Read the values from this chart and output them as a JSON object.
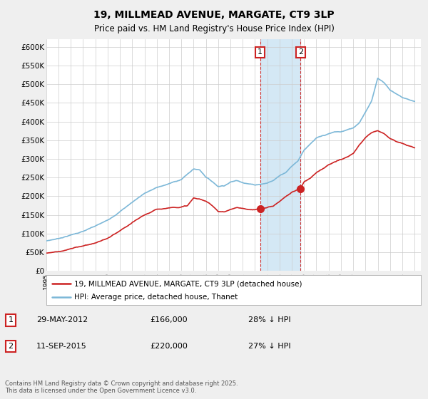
{
  "title": "19, MILLMEAD AVENUE, MARGATE, CT9 3LP",
  "subtitle": "Price paid vs. HM Land Registry's House Price Index (HPI)",
  "ylim": [
    0,
    620000
  ],
  "yticks": [
    0,
    50000,
    100000,
    150000,
    200000,
    250000,
    300000,
    350000,
    400000,
    450000,
    500000,
    550000,
    600000
  ],
  "ytick_labels": [
    "£0",
    "£50K",
    "£100K",
    "£150K",
    "£200K",
    "£250K",
    "£300K",
    "£350K",
    "£400K",
    "£450K",
    "£500K",
    "£550K",
    "£600K"
  ],
  "hpi_color": "#7db8d8",
  "price_color": "#cc2222",
  "shading_color": "#d4e8f5",
  "transaction1_date": 2012.42,
  "transaction1_price": 166000,
  "transaction2_date": 2015.71,
  "transaction2_price": 220000,
  "legend_line1": "19, MILLMEAD AVENUE, MARGATE, CT9 3LP (detached house)",
  "legend_line2": "HPI: Average price, detached house, Thanet",
  "table_row1": [
    "1",
    "29-MAY-2012",
    "£166,000",
    "28% ↓ HPI"
  ],
  "table_row2": [
    "2",
    "11-SEP-2015",
    "£220,000",
    "27% ↓ HPI"
  ],
  "footer": "Contains HM Land Registry data © Crown copyright and database right 2025.\nThis data is licensed under the Open Government Licence v3.0.",
  "background_color": "#efefef",
  "plot_background": "#ffffff",
  "hpi_pts_x": [
    1995,
    1996,
    1997,
    1998,
    1999,
    2000,
    2001,
    2002,
    2003,
    2004,
    2005,
    2006,
    2007,
    2007.5,
    2008,
    2008.5,
    2009,
    2009.5,
    2010,
    2010.5,
    2011,
    2011.5,
    2012,
    2012.5,
    2013,
    2013.5,
    2014,
    2014.5,
    2015,
    2015.5,
    2016,
    2016.5,
    2017,
    2017.5,
    2018,
    2018.5,
    2019,
    2019.5,
    2020,
    2020.5,
    2021,
    2021.5,
    2022,
    2022.5,
    2023,
    2023.5,
    2024,
    2024.5,
    2025
  ],
  "hpi_pts_y": [
    75000,
    82000,
    92000,
    102000,
    115000,
    130000,
    155000,
    180000,
    205000,
    220000,
    230000,
    242000,
    270000,
    268000,
    250000,
    238000,
    225000,
    228000,
    238000,
    242000,
    238000,
    235000,
    232000,
    235000,
    238000,
    245000,
    258000,
    268000,
    285000,
    300000,
    330000,
    345000,
    360000,
    365000,
    370000,
    375000,
    375000,
    380000,
    385000,
    400000,
    430000,
    460000,
    520000,
    510000,
    490000,
    480000,
    470000,
    465000,
    460000
  ],
  "price_pts_x": [
    1995,
    1996,
    1997,
    1998,
    1999,
    2000,
    2001,
    2002,
    2003,
    2004,
    2005,
    2006,
    2006.5,
    2007,
    2007.5,
    2008,
    2008.5,
    2009,
    2009.5,
    2010,
    2010.5,
    2011,
    2011.5,
    2012,
    2012.42,
    2012.5,
    2013,
    2013.5,
    2014,
    2014.5,
    2015,
    2015.71,
    2016,
    2016.5,
    2017,
    2017.5,
    2018,
    2018.5,
    2019,
    2019.5,
    2020,
    2020.5,
    2021,
    2021.5,
    2022,
    2022.5,
    2023,
    2023.5,
    2024,
    2024.5,
    2025
  ],
  "price_pts_y": [
    50000,
    55000,
    62000,
    70000,
    78000,
    90000,
    108000,
    128000,
    148000,
    162000,
    168000,
    172000,
    175000,
    195000,
    192000,
    185000,
    175000,
    160000,
    158000,
    165000,
    170000,
    168000,
    163000,
    162000,
    166000,
    165000,
    168000,
    173000,
    185000,
    198000,
    210000,
    220000,
    238000,
    248000,
    265000,
    275000,
    285000,
    292000,
    298000,
    305000,
    312000,
    335000,
    355000,
    368000,
    375000,
    368000,
    355000,
    348000,
    342000,
    335000,
    330000
  ]
}
